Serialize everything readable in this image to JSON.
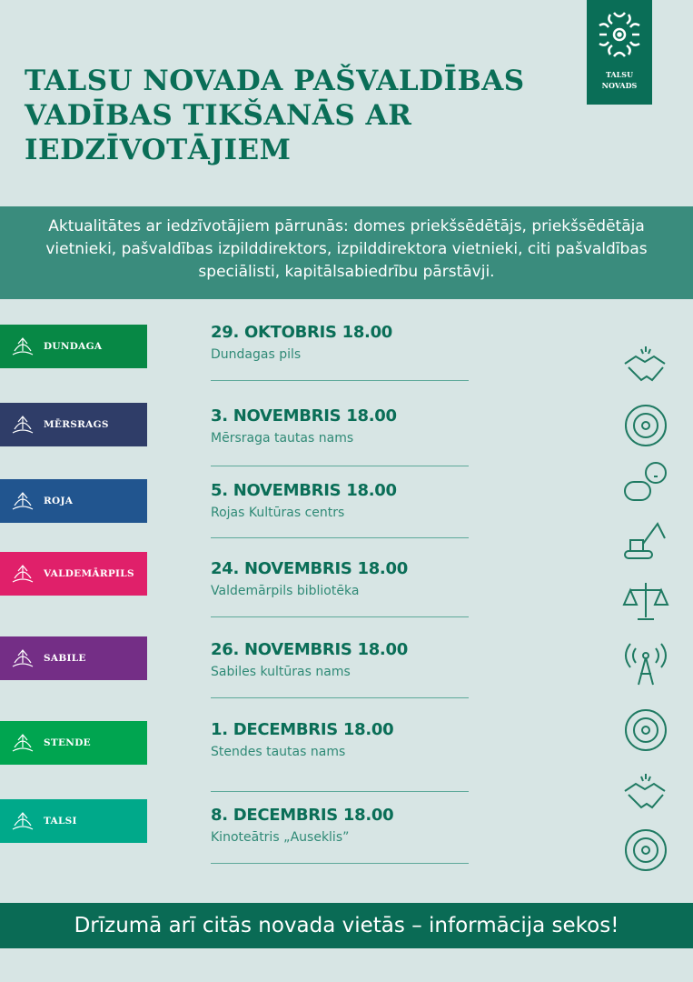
{
  "logo": {
    "line1": "TALSU",
    "line2": "NOVADS"
  },
  "title": "TALSU NOVADA PAŠVALDĪBAS VADĪBAS TIKŠANĀS AR IEDZĪVOTĀJIEM",
  "intro": "Aktualitātes ar iedzīvotājiem  pārrunās: domes priekšsēdētājs, priekšsēdētāja vietnieki, pašvaldības izpilddirektors, izpilddirektora vietnieki, citi pašvaldības speciālisti, kapitālsabiedrību pārstāvji.",
  "events": [
    {
      "town": "DUNDAGA",
      "color": "#078845",
      "date": "29. OKTOBRIS 18.00",
      "place": "Dundagas pils"
    },
    {
      "town": "MĒRSRAGS",
      "color": "#2f3d68",
      "date": "3. NOVEMBRIS 18.00",
      "place": "Mērsraga tautas nams"
    },
    {
      "town": "ROJA",
      "color": "#21558f",
      "date": "5. NOVEMBRIS 18.00",
      "place": "Rojas Kultūras centrs"
    },
    {
      "town": "VALDEMĀRPILS",
      "color": "#e0206a",
      "date": "24. NOVEMBRIS 18.00",
      "place": "Valdemārpils bibliotēka"
    },
    {
      "town": "SABILE",
      "color": "#742e86",
      "date": "26. NOVEMBRIS 18.00",
      "place": "Sabiles kultūras nams"
    },
    {
      "town": "STENDE",
      "color": "#00a550",
      "date": "1. DECEMBRIS 18.00",
      "place": "Stendes tautas nams"
    },
    {
      "town": "TALSI",
      "color": "#00a98a",
      "date": "8. DECEMBRIS 18.00",
      "place": "Kinoteātris „Auseklis”"
    }
  ],
  "side_icons": [
    "handshake-icon",
    "target-icon",
    "chat-idea-icon",
    "excavator-icon",
    "scales-icon",
    "antenna-icon",
    "compass-icon",
    "handshake-icon",
    "target-icon"
  ],
  "footer": "Drīzumā arī citās novada vietās – informācija sekos!"
}
